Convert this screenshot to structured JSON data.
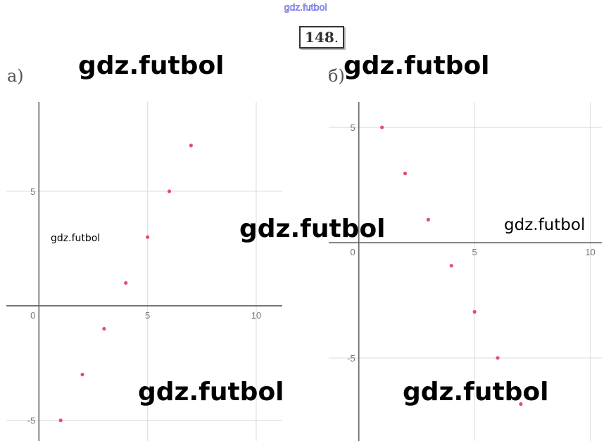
{
  "header": {
    "watermark": "gdz.futbol",
    "task_number": "148",
    "task_dot": "."
  },
  "watermarks": {
    "a_top": "gdz.futbol",
    "b_top": "gdz.futbol",
    "a_left": "gdz.futbol",
    "center": "gdz.futbol",
    "b_right": "gdz.futbol",
    "a_bottom": "gdz.futbol",
    "b_bottom": "gdz.futbol"
  },
  "colors": {
    "axis": "#666666",
    "grid": "#dcdcdc",
    "point": "#e0506a",
    "tick_text": "#777777"
  },
  "chart_data": [
    {
      "type": "scatter",
      "label": "а)",
      "title": "",
      "xlabel": "",
      "ylabel": "",
      "grid": true,
      "xlim": [
        -1.5,
        11.2
      ],
      "ylim": [
        -5.9,
        8.9
      ],
      "x_ticks": [
        "0",
        "5",
        "10"
      ],
      "y_ticks": [
        "5",
        "-5"
      ],
      "x_tick_values": [
        0,
        5,
        10
      ],
      "y_tick_values": [
        5,
        -5
      ],
      "points": [
        {
          "x": 1,
          "y": -5
        },
        {
          "x": 2,
          "y": -3
        },
        {
          "x": 3,
          "y": -1
        },
        {
          "x": 4,
          "y": 1
        },
        {
          "x": 5,
          "y": 3
        },
        {
          "x": 6,
          "y": 5
        },
        {
          "x": 7,
          "y": 7
        }
      ]
    },
    {
      "type": "scatter",
      "label": "б)",
      "title": "",
      "xlabel": "",
      "ylabel": "",
      "grid": true,
      "xlim": [
        -1.3,
        10.5
      ],
      "ylim": [
        -8.6,
        6.1
      ],
      "x_ticks": [
        "0",
        "5",
        "10"
      ],
      "y_ticks": [
        "5",
        "-5"
      ],
      "x_tick_values": [
        0,
        5,
        10
      ],
      "y_tick_values": [
        5,
        -5
      ],
      "points": [
        {
          "x": 1,
          "y": 5
        },
        {
          "x": 2,
          "y": 3
        },
        {
          "x": 3,
          "y": 1
        },
        {
          "x": 4,
          "y": -1
        },
        {
          "x": 5,
          "y": -3
        },
        {
          "x": 6,
          "y": -5
        },
        {
          "x": 7,
          "y": -7
        }
      ]
    }
  ]
}
